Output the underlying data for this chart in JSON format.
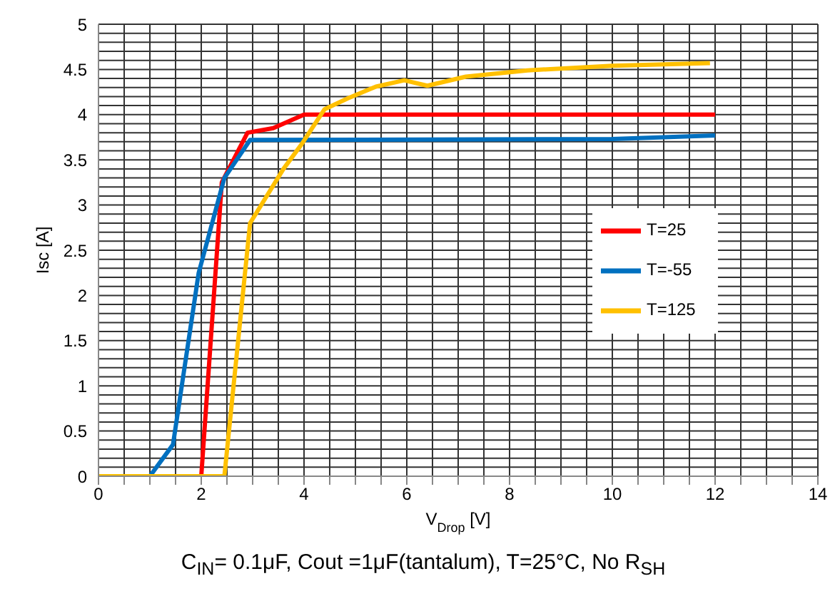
{
  "chart_data": {
    "type": "line",
    "xlabel": "V$_{Drop}$ [V]",
    "ylabel": "Isc [A]",
    "annotations": [
      "C$_{IN}$= 0.1μF, Cout =1μF(tantalum), T=25°C, No R$_{SH}$"
    ],
    "series": [
      {
        "name": "T=25",
        "color": "#ff0000",
        "x": [
          0,
          2,
          2.4,
          2.9,
          3.4,
          4,
          12
        ],
        "values": [
          0,
          0,
          3.25,
          3.8,
          3.85,
          4,
          4
        ]
      },
      {
        "name": "T=-55",
        "color": "#0070c0",
        "x": [
          0,
          1,
          1.45,
          1.95,
          2.45,
          2.95,
          10,
          12
        ],
        "values": [
          0,
          0,
          0.35,
          2.25,
          3.3,
          3.72,
          3.73,
          3.77
        ]
      },
      {
        "name": "T=125",
        "color": "#ffc000",
        "x": [
          0,
          2.45,
          2.95,
          3.6,
          3.95,
          4.4,
          4.85,
          5.4,
          5.95,
          6.4,
          7.15,
          8.35,
          10,
          11.9
        ],
        "values": [
          0,
          0,
          2.8,
          3.4,
          3.67,
          4.06,
          4.18,
          4.31,
          4.38,
          4.32,
          4.42,
          4.49,
          4.54,
          4.57
        ]
      }
    ],
    "xlim": [
      0,
      14
    ],
    "xticks": [
      0,
      {
        "value": 0.5,
        "label": null
      },
      2,
      {
        "value": 1,
        "label": null
      },
      {
        "value": 1.5,
        "label": null
      },
      {
        "value": 2.5,
        "label": null
      },
      {
        "value": 3,
        "label": null
      },
      {
        "value": 3.5,
        "label": null
      },
      4,
      {
        "value": 4.5,
        "label": null
      },
      {
        "value": 5,
        "label": null
      },
      {
        "value": 5.5,
        "label": null
      },
      6,
      {
        "value": 6.5,
        "label": null
      },
      {
        "value": 7,
        "label": null
      },
      {
        "value": 7.5,
        "label": null
      },
      8,
      {
        "value": 8.5,
        "label": null
      },
      {
        "value": 9,
        "label": null
      },
      {
        "value": 9.5,
        "label": null
      },
      10,
      {
        "value": 10.5,
        "label": null
      },
      {
        "value": 11,
        "label": null
      },
      {
        "value": 11.5,
        "label": null
      },
      12,
      {
        "value": 12.5,
        "label": null
      },
      {
        "value": 13,
        "label": null
      },
      {
        "value": 13.5,
        "label": null
      },
      14
    ],
    "ylim": [
      0,
      5
    ],
    "yticks": [
      0,
      {
        "value": 0.1,
        "label": null
      },
      {
        "value": 0.2,
        "label": null
      },
      {
        "value": 0.3,
        "label": null
      },
      {
        "value": 0.4,
        "label": null
      },
      0.5,
      {
        "value": 0.6,
        "label": null
      },
      {
        "value": 0.7,
        "label": null
      },
      {
        "value": 0.8,
        "label": null
      },
      {
        "value": 0.9,
        "label": null
      },
      1,
      {
        "value": 1.1,
        "label": null
      },
      {
        "value": 1.2,
        "label": null
      },
      {
        "value": 1.3,
        "label": null
      },
      {
        "value": 1.4,
        "label": null
      },
      1.5,
      {
        "value": 1.6,
        "label": null
      },
      {
        "value": 1.7,
        "label": null
      },
      {
        "value": 1.8,
        "label": null
      },
      {
        "value": 1.9,
        "label": null
      },
      2,
      {
        "value": 2.1,
        "label": null
      },
      {
        "value": 2.2,
        "label": null
      },
      {
        "value": 2.3,
        "label": null
      },
      {
        "value": 2.4,
        "label": null
      },
      2.5,
      {
        "value": 2.6,
        "label": null
      },
      {
        "value": 2.7,
        "label": null
      },
      {
        "value": 2.8,
        "label": null
      },
      {
        "value": 2.9,
        "label": null
      },
      3,
      {
        "value": 3.1,
        "label": null
      },
      {
        "value": 3.2,
        "label": null
      },
      {
        "value": 3.3,
        "label": null
      },
      {
        "value": 3.4,
        "label": null
      },
      3.5,
      {
        "value": 3.6,
        "label": null
      },
      {
        "value": 3.7,
        "label": null
      },
      {
        "value": 3.8,
        "label": null
      },
      {
        "value": 3.9,
        "label": null
      },
      4,
      {
        "value": 4.1,
        "label": null
      },
      {
        "value": 4.2,
        "label": null
      },
      {
        "value": 4.3,
        "label": null
      },
      {
        "value": 4.4,
        "label": null
      },
      4.5,
      {
        "value": 4.6,
        "label": null
      },
      {
        "value": 4.7,
        "label": null
      },
      {
        "value": 4.8,
        "label": null
      },
      {
        "value": 4.9,
        "label": null
      },
      5
    ],
    "grid": true,
    "legend": "right",
    "marker": "none",
    "line_style": "solid"
  }
}
